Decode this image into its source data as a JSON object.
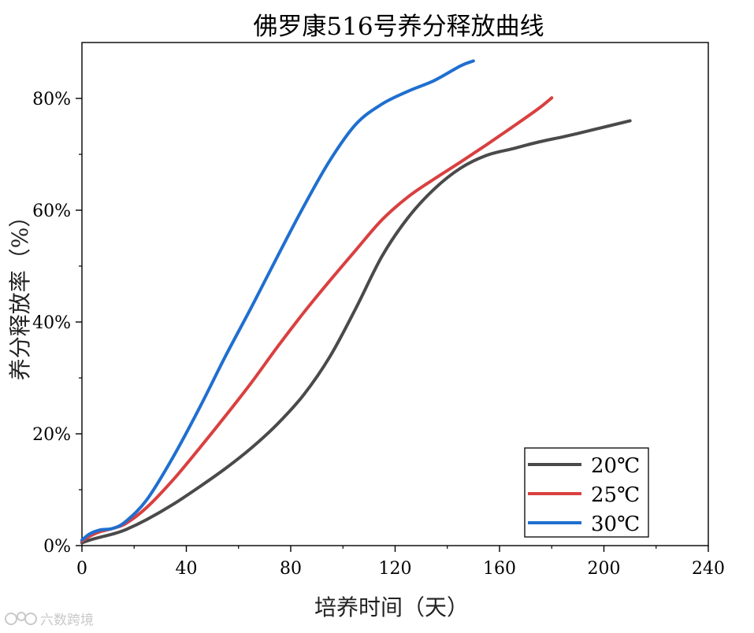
{
  "chart_data": {
    "type": "line",
    "title": "佛罗康516号养分释放曲线",
    "xlabel": "培养时间（天）",
    "ylabel": "养分释放率（%）",
    "xlim": [
      0,
      240
    ],
    "ylim": [
      0,
      90
    ],
    "xticks": [
      0,
      40,
      80,
      120,
      160,
      200,
      240
    ],
    "xtick_labels": [
      "0",
      "40",
      "80",
      "120",
      "160",
      "200",
      "240"
    ],
    "yticks": [
      0,
      20,
      40,
      60,
      80
    ],
    "ytick_labels": [
      "0%",
      "20%",
      "40%",
      "60%",
      "80%"
    ],
    "legend_position": "bottom-right",
    "series": [
      {
        "name": "20℃",
        "color": "#4a4a4a",
        "x": [
          0,
          3,
          7,
          12,
          17,
          25,
          35,
          45,
          55,
          65,
          75,
          85,
          95,
          105,
          115,
          125,
          135,
          145,
          155,
          165,
          175,
          185,
          195,
          210
        ],
        "y": [
          0.5,
          1.0,
          1.5,
          2.1,
          2.9,
          4.7,
          7.4,
          10.5,
          13.8,
          17.5,
          21.8,
          27.0,
          33.8,
          42.5,
          51.8,
          58.7,
          63.8,
          67.5,
          69.8,
          71.0,
          72.2,
          73.2,
          74.3,
          76.0
        ]
      },
      {
        "name": "25℃",
        "color": "#d94040",
        "x": [
          0,
          3,
          7,
          12,
          17,
          25,
          35,
          45,
          55,
          65,
          75,
          85,
          95,
          105,
          115,
          125,
          135,
          145,
          155,
          165,
          175,
          180
        ],
        "y": [
          0.8,
          1.7,
          2.5,
          3.1,
          4.0,
          6.9,
          11.8,
          17.4,
          23.2,
          29.2,
          35.6,
          41.7,
          47.4,
          52.9,
          58.3,
          62.4,
          65.6,
          68.6,
          71.7,
          74.9,
          78.2,
          80.1
        ]
      },
      {
        "name": "30℃",
        "color": "#1f6fcf",
        "x": [
          0,
          3,
          7,
          12,
          17,
          25,
          35,
          45,
          55,
          65,
          75,
          85,
          95,
          105,
          115,
          125,
          135,
          145,
          150
        ],
        "y": [
          1.0,
          2.1,
          2.8,
          3.1,
          4.4,
          8.3,
          15.9,
          24.6,
          33.9,
          42.7,
          51.8,
          60.7,
          68.9,
          75.4,
          79.0,
          81.3,
          83.2,
          85.8,
          86.7
        ]
      }
    ]
  },
  "watermark": {
    "text": "六数跨境",
    "icon": "logo-icon"
  }
}
